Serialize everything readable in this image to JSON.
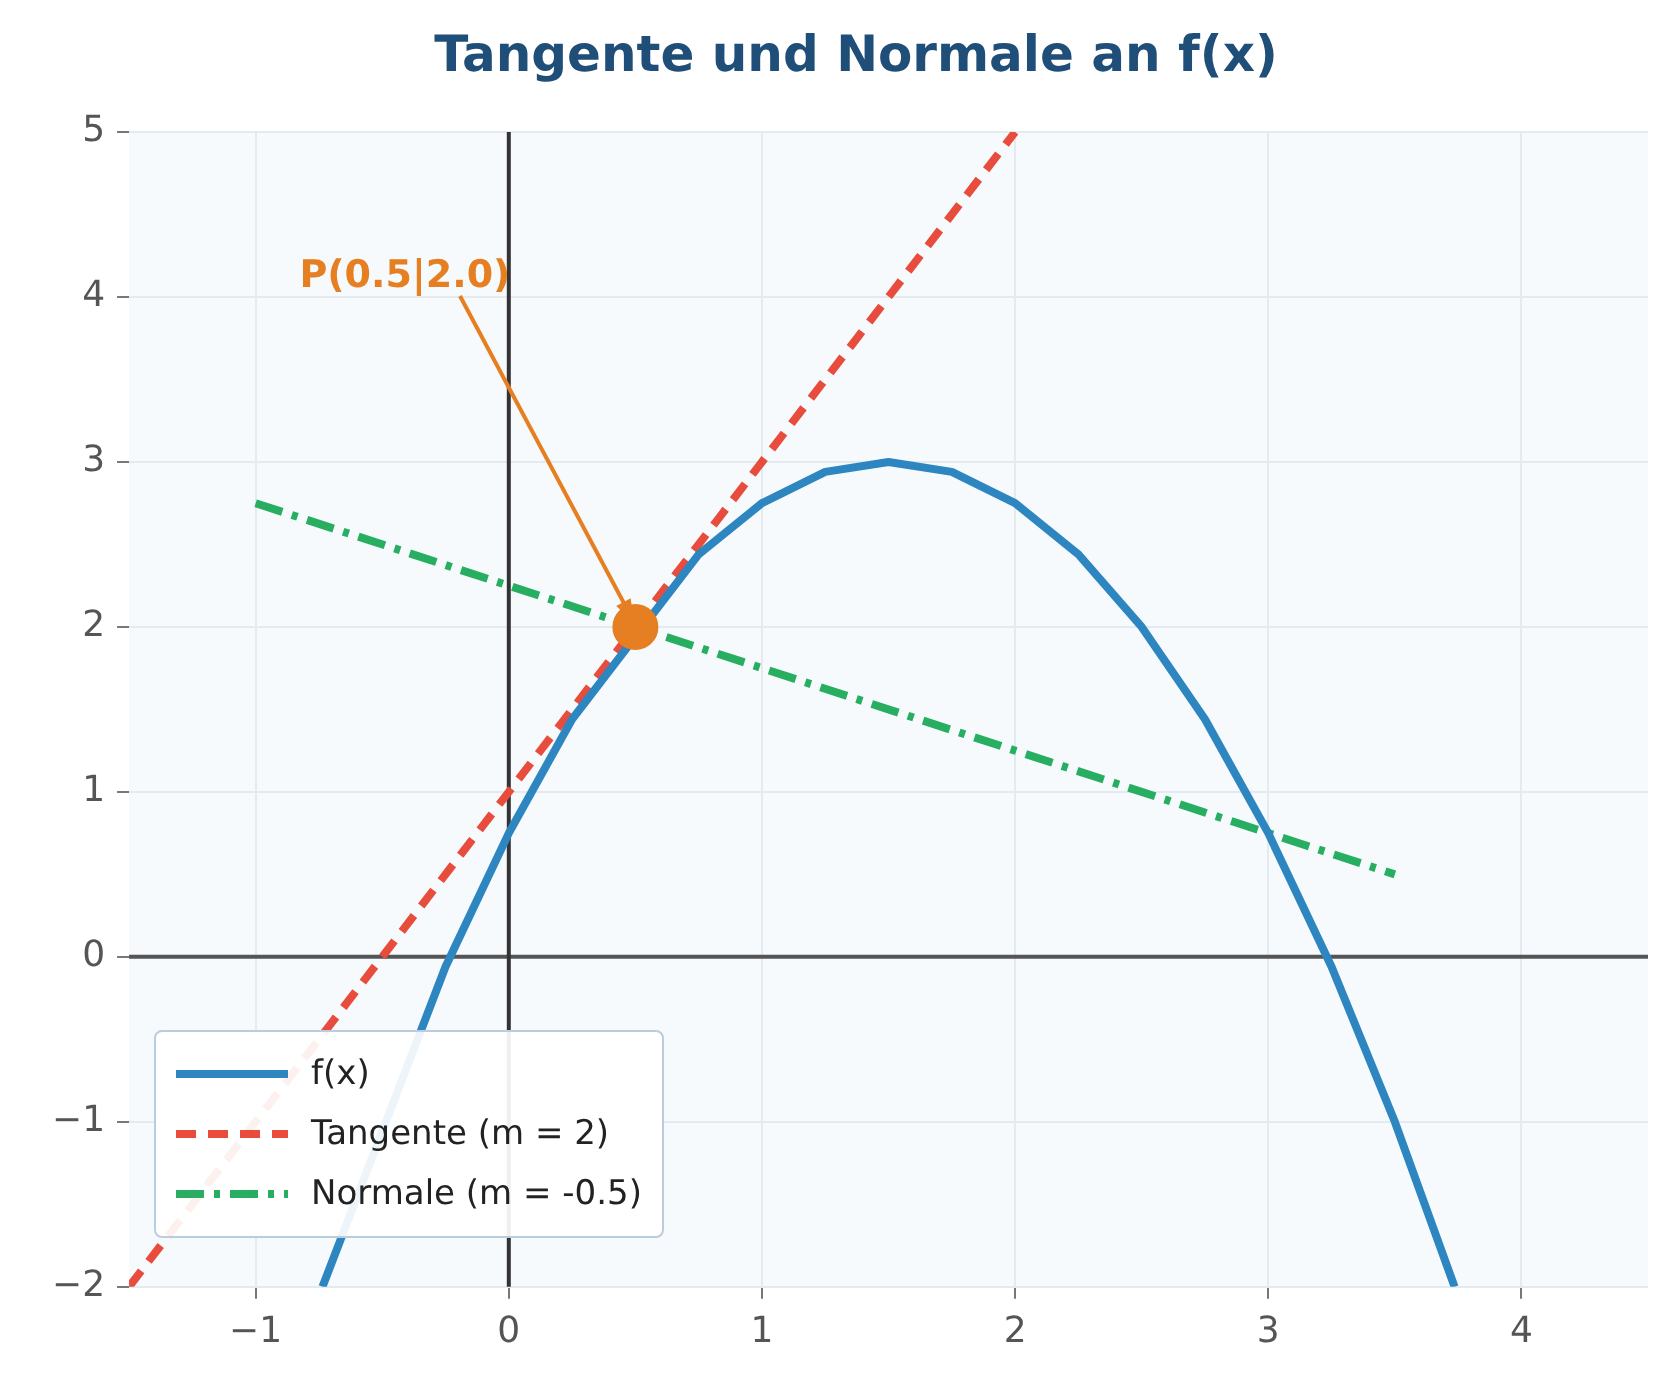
{
  "chart_data": {
    "type": "line",
    "title": "Tangente und Normale an f(x)",
    "series": [
      {
        "name": "f(x)",
        "color": "#2e86c1",
        "line_style": "solid",
        "x": [
          -0.736,
          -0.25,
          0,
          0.25,
          0.75,
          1,
          1.25,
          1.5,
          1.75,
          2,
          2.25,
          2.5,
          2.75,
          3,
          3.25,
          3.5,
          3.736
        ],
        "values": [
          -2,
          -0.06,
          0.75,
          1.44,
          2.44,
          2.75,
          2.94,
          3,
          2.94,
          2.75,
          2.44,
          2,
          1.44,
          0.75,
          -0.06,
          -1,
          -2
        ]
      },
      {
        "name": "Tangente (m = 2)",
        "color": "#e74c3c",
        "line_style": "dashed",
        "x": [
          -1.5,
          2
        ],
        "values": [
          -2,
          5
        ]
      },
      {
        "name": "Normale (m = -0.5)",
        "color": "#27ae60",
        "line_style": "dashdot",
        "x": [
          -1,
          3.5
        ],
        "values": [
          2.75,
          0.5
        ]
      },
      {
        "type": "scatter",
        "color": "#e67e22",
        "marker": "circle",
        "x": [
          0.5
        ],
        "values": [
          2
        ]
      }
    ],
    "xlim": [
      -1.5,
      4.5
    ],
    "xticks": [
      -1,
      0,
      1,
      2,
      3,
      4
    ],
    "ylim": [
      -2,
      5
    ],
    "yticks": [
      -2,
      -1,
      0,
      1,
      2,
      3,
      4,
      5
    ],
    "grid": true,
    "legend": "bottom left",
    "marker": "none",
    "ref_lines": [
      {
        "axis": "y",
        "value": 0,
        "color": "#555555"
      },
      {
        "axis": "x",
        "value": 0,
        "color": "#333333"
      }
    ],
    "annotations": [
      {
        "text": "P(0.5|2.0)",
        "x": 0.5,
        "y": 2
      }
    ]
  }
}
